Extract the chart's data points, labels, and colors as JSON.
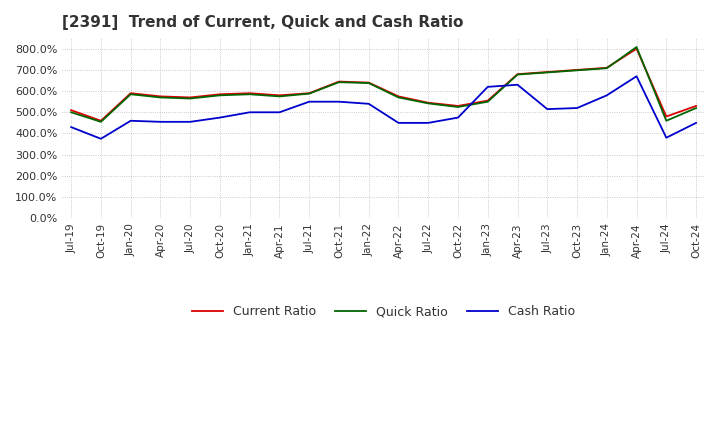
{
  "title": "[2391]  Trend of Current, Quick and Cash Ratio",
  "title_fontsize": 11,
  "ylim": [
    0,
    850
  ],
  "yticks": [
    0,
    100,
    200,
    300,
    400,
    500,
    600,
    700,
    800
  ],
  "background_color": "#ffffff",
  "plot_bg_color": "#ffffff",
  "grid_color": "#bbbbbb",
  "labels": [
    "Jul-19",
    "Oct-19",
    "Jan-20",
    "Apr-20",
    "Jul-20",
    "Oct-20",
    "Jan-21",
    "Apr-21",
    "Jul-21",
    "Oct-21",
    "Jan-22",
    "Apr-22",
    "Jul-22",
    "Oct-22",
    "Jan-23",
    "Apr-23",
    "Jul-23",
    "Oct-23",
    "Jan-24",
    "Apr-24",
    "Jul-24",
    "Oct-24"
  ],
  "current_ratio": [
    510,
    460,
    590,
    575,
    570,
    585,
    590,
    580,
    590,
    645,
    640,
    575,
    545,
    530,
    555,
    680,
    690,
    700,
    710,
    800,
    480,
    530
  ],
  "quick_ratio": [
    500,
    455,
    585,
    570,
    565,
    580,
    585,
    575,
    588,
    642,
    638,
    570,
    542,
    525,
    550,
    678,
    688,
    698,
    708,
    808,
    460,
    520
  ],
  "cash_ratio": [
    430,
    375,
    460,
    455,
    455,
    475,
    500,
    500,
    550,
    550,
    540,
    450,
    450,
    475,
    620,
    630,
    515,
    520,
    580,
    670,
    380,
    450
  ],
  "current_color": "#dd0000",
  "quick_color": "#006600",
  "cash_color": "#0000cc",
  "line_width": 1.3
}
